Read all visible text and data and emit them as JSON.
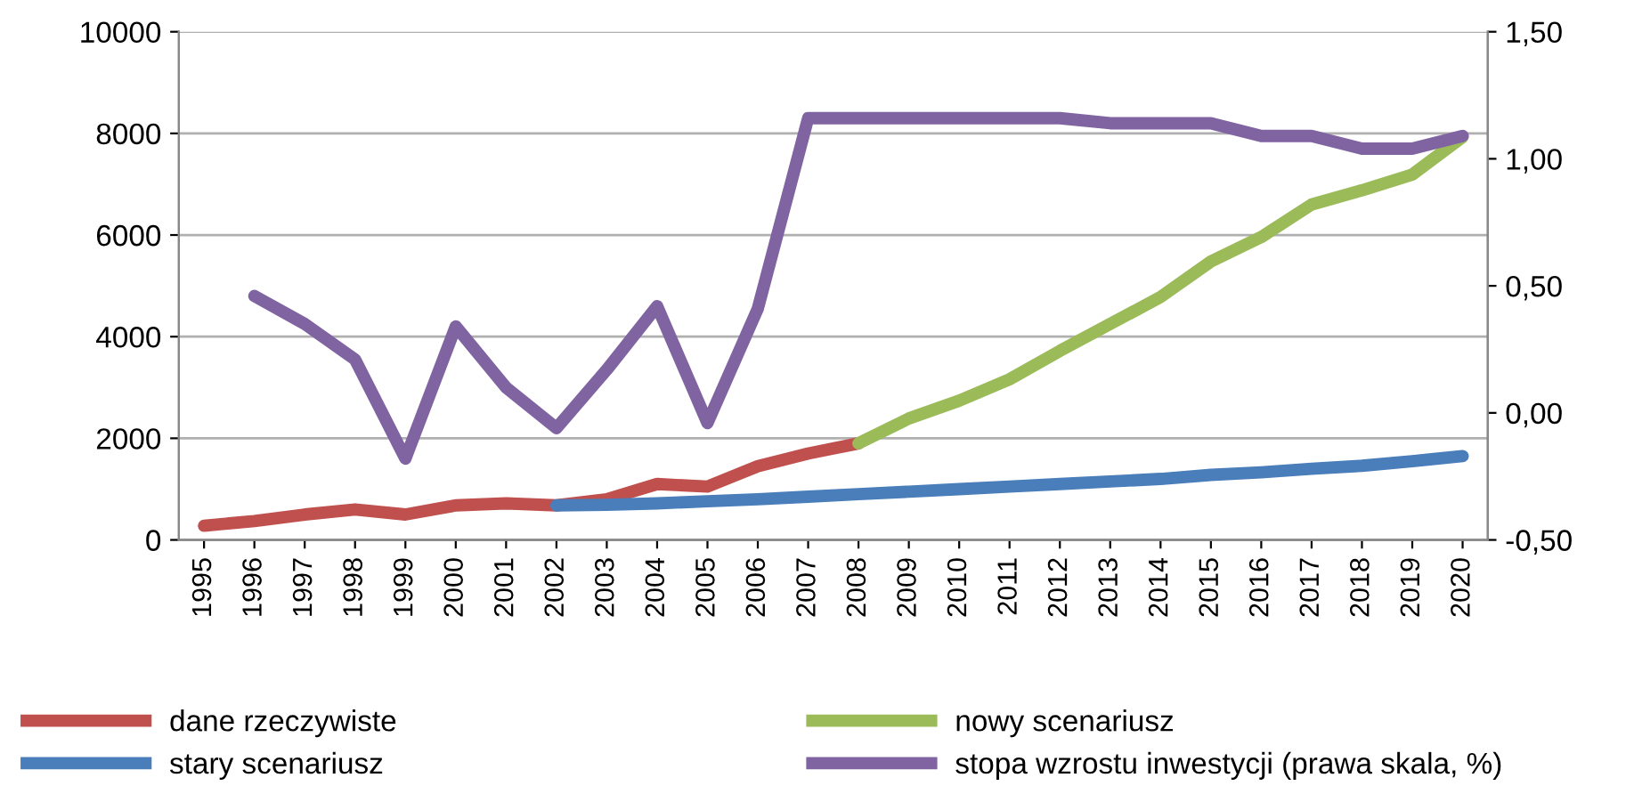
{
  "chart_data": {
    "type": "line",
    "categories": [
      "1995",
      "1996",
      "1997",
      "1998",
      "1999",
      "2000",
      "2001",
      "2002",
      "2003",
      "2004",
      "2005",
      "2006",
      "2007",
      "2008",
      "2009",
      "2010",
      "2011",
      "2012",
      "2013",
      "2014",
      "2015",
      "2016",
      "2017",
      "2018",
      "2019",
      "2020"
    ],
    "series": [
      {
        "name": "dane rzeczywiste",
        "color": "#c0504d",
        "values": [
          280,
          370,
          500,
          600,
          500,
          680,
          720,
          680,
          800,
          1100,
          1050,
          1450,
          1700,
          1900,
          null,
          null,
          null,
          null,
          null,
          null,
          null,
          null,
          null,
          null,
          null,
          null
        ]
      },
      {
        "name": "stary scenariusz",
        "color": "#4a7ebb",
        "values": [
          null,
          null,
          null,
          null,
          null,
          null,
          null,
          680,
          690,
          720,
          760,
          800,
          850,
          900,
          950,
          1000,
          1050,
          1100,
          1150,
          1200,
          1280,
          1330,
          1400,
          1460,
          1550,
          1650
        ]
      },
      {
        "name": "nowy scenariusz",
        "color": "#9bbb59",
        "values": [
          null,
          null,
          null,
          null,
          null,
          null,
          null,
          null,
          null,
          null,
          null,
          null,
          null,
          1900,
          2390,
          2740,
          3160,
          3720,
          4250,
          4780,
          5480,
          5960,
          6600,
          6880,
          7190,
          7930
        ]
      },
      {
        "name": "stopa wzrostu inwestycji (prawa skala, %)",
        "color": "#8064a2",
        "axis": "y2",
        "values": [
          null,
          0.46,
          0.35,
          0.21,
          -0.18,
          0.34,
          0.1,
          -0.06,
          0.17,
          0.42,
          -0.04,
          0.41,
          1.16,
          1.16,
          1.16,
          1.16,
          1.16,
          1.16,
          1.14,
          1.14,
          1.14,
          1.09,
          1.09,
          1.04,
          1.04,
          1.09
        ]
      }
    ],
    "ylim": [
      0,
      10000
    ],
    "yticks": [
      0,
      2000,
      4000,
      6000,
      8000,
      10000
    ],
    "y2lim": [
      -0.5,
      1.5
    ],
    "y2ticks": [
      {
        "value": -0.5,
        "label": "-0,50"
      },
      {
        "value": 0,
        "label": "0,00"
      },
      {
        "value": 0.5,
        "label": "0,50"
      },
      {
        "value": 1,
        "label": "1,00"
      },
      {
        "value": 1.5,
        "label": "1,50"
      }
    ],
    "grid": "y",
    "legend": "bottom",
    "marker": "none",
    "line_style": "solid"
  }
}
